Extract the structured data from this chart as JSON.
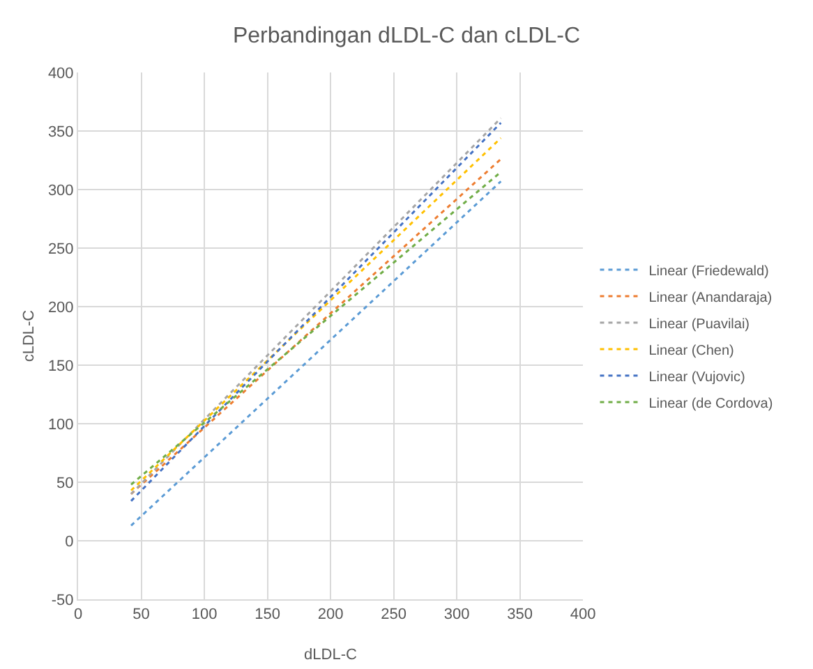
{
  "chart_data": {
    "type": "line",
    "title": "Perbandingan dLDL-C dan cLDL-C",
    "xlabel": "dLDL-C",
    "ylabel": "cLDL-C",
    "x": [
      42,
      335
    ],
    "series": [
      {
        "name": "Linear (Friedewald)",
        "color": "#5b9bd5",
        "values": [
          13,
          307
        ]
      },
      {
        "name": "Linear (Anandaraja)",
        "color": "#ed7d31",
        "values": [
          40,
          326
        ]
      },
      {
        "name": "Linear (Puavilai)",
        "color": "#a5a5a5",
        "values": [
          40,
          361
        ]
      },
      {
        "name": "Linear (Chen)",
        "color": "#ffc000",
        "values": [
          43,
          344
        ]
      },
      {
        "name": "Linear (Vujovic)",
        "color": "#4472c4",
        "values": [
          34,
          357
        ]
      },
      {
        "name": "Linear (de Cordova)",
        "color": "#70ad47",
        "values": [
          48,
          315
        ]
      }
    ],
    "xlim": [
      0,
      400
    ],
    "xticks": [
      0,
      50,
      100,
      150,
      200,
      250,
      300,
      350,
      400
    ],
    "ylim": [
      -50,
      400
    ],
    "yticks": [
      -50,
      0,
      50,
      100,
      150,
      200,
      250,
      300,
      350,
      400
    ],
    "grid": true,
    "legend": "right",
    "marker": "none",
    "line_style": "dotted"
  }
}
